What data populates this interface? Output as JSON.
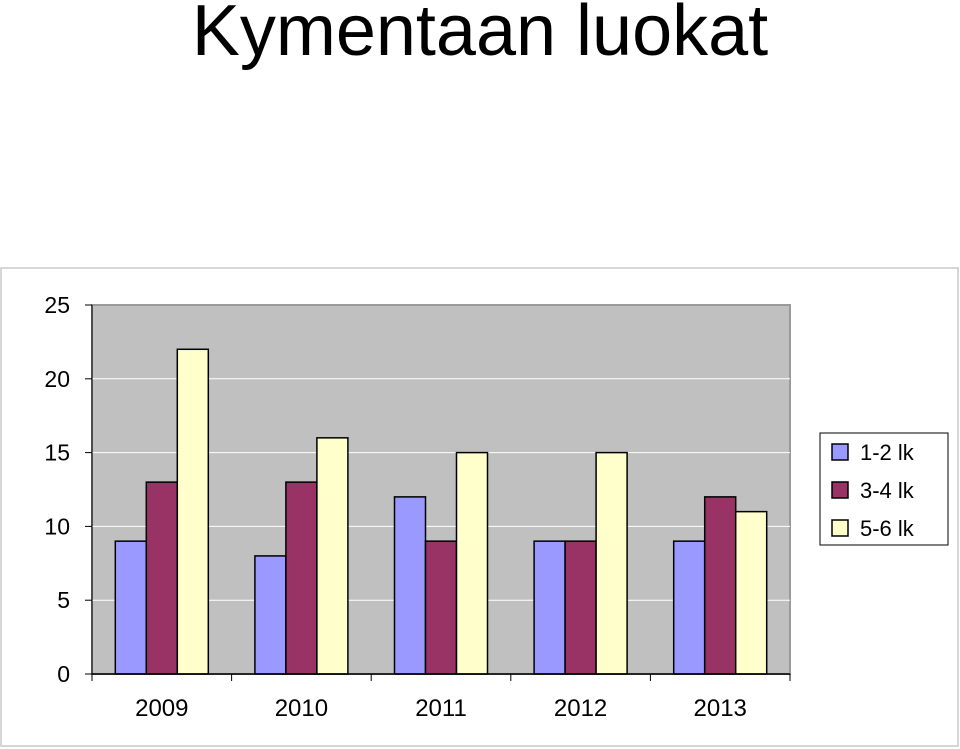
{
  "page": {
    "title": "Kymentaan luokat"
  },
  "chart_data": {
    "type": "bar",
    "title": "",
    "xlabel": "",
    "ylabel": "",
    "categories": [
      "2009",
      "2010",
      "2011",
      "2012",
      "2013"
    ],
    "series": [
      {
        "name": "1-2 lk",
        "values": [
          9,
          8,
          12,
          9,
          9
        ],
        "color": "#9999ff"
      },
      {
        "name": "3-4 lk",
        "values": [
          13,
          13,
          9,
          9,
          12
        ],
        "color": "#993366"
      },
      {
        "name": "5-6 lk",
        "values": [
          22,
          16,
          15,
          15,
          11
        ],
        "color": "#ffffcc"
      }
    ],
    "ylim": [
      0,
      25
    ],
    "yticks": [
      0,
      5,
      10,
      15,
      20,
      25
    ],
    "grid": true,
    "plot_background": "#c0c0c0",
    "legend_position": "right"
  }
}
